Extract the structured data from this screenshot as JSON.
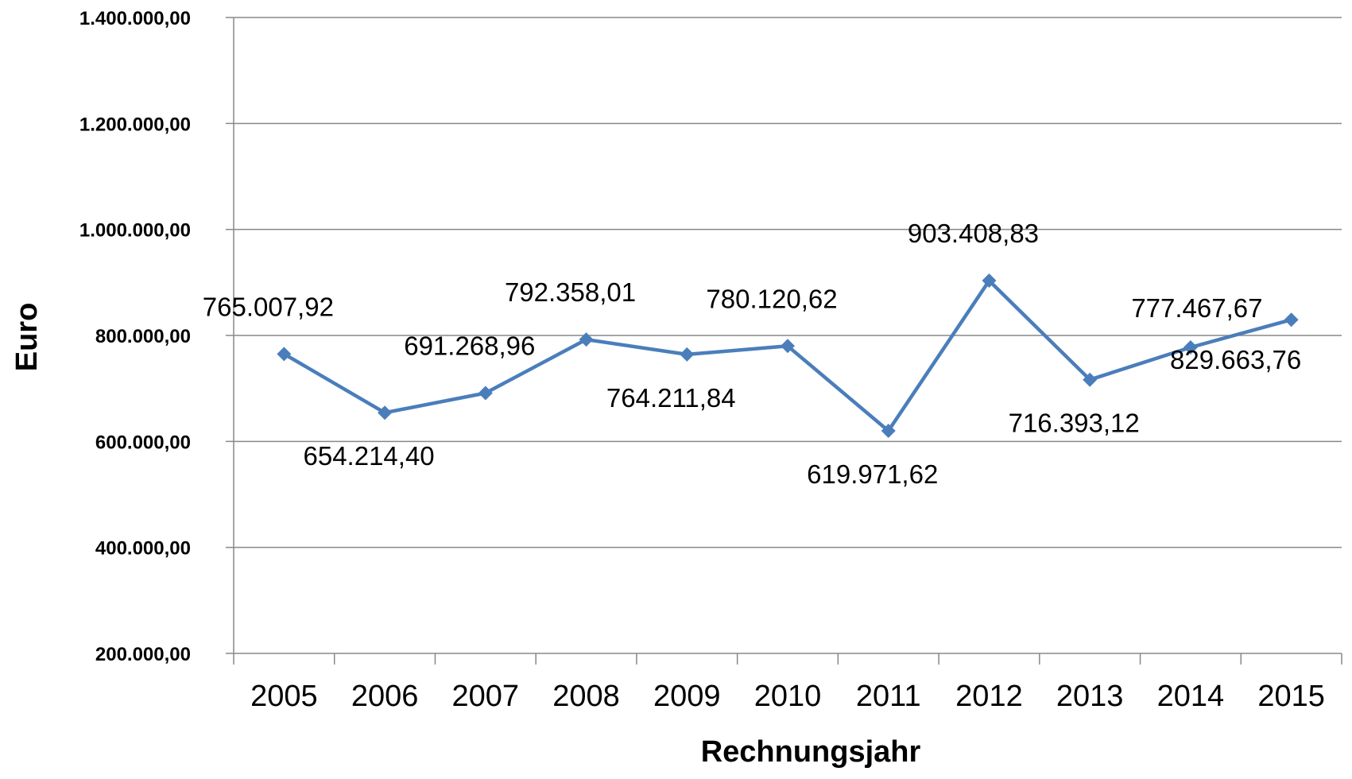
{
  "chart_data": {
    "type": "line",
    "xlabel": "Rechnungsjahr",
    "ylabel": "Euro",
    "ylim": [
      200000,
      1400000
    ],
    "yticks": [
      200000,
      400000,
      600000,
      800000,
      1000000,
      1200000,
      1400000
    ],
    "ytick_labels": [
      "200.000,00",
      "400.000,00",
      "600.000,00",
      "800.000,00",
      "1.000.000,00",
      "1.200.000,00",
      "1.400.000,00"
    ],
    "grid": true,
    "legend": "none",
    "series_color": "#4a7ebb",
    "marker": "diamond",
    "categories": [
      "2005",
      "2006",
      "2007",
      "2008",
      "2009",
      "2010",
      "2011",
      "2012",
      "2013",
      "2014",
      "2015"
    ],
    "values": [
      765007.92,
      654214.4,
      691268.96,
      792358.01,
      764211.84,
      780120.62,
      619971.62,
      903408.83,
      716393.12,
      777467.67,
      829663.76
    ],
    "value_labels": [
      "765.007,92",
      "654.214,40",
      "691.268,96",
      "792.358,01",
      "764.211,84",
      "780.120,62",
      "619.971,62",
      "903.408,83",
      "716.393,12",
      "777.467,67",
      "829.663,76"
    ]
  }
}
